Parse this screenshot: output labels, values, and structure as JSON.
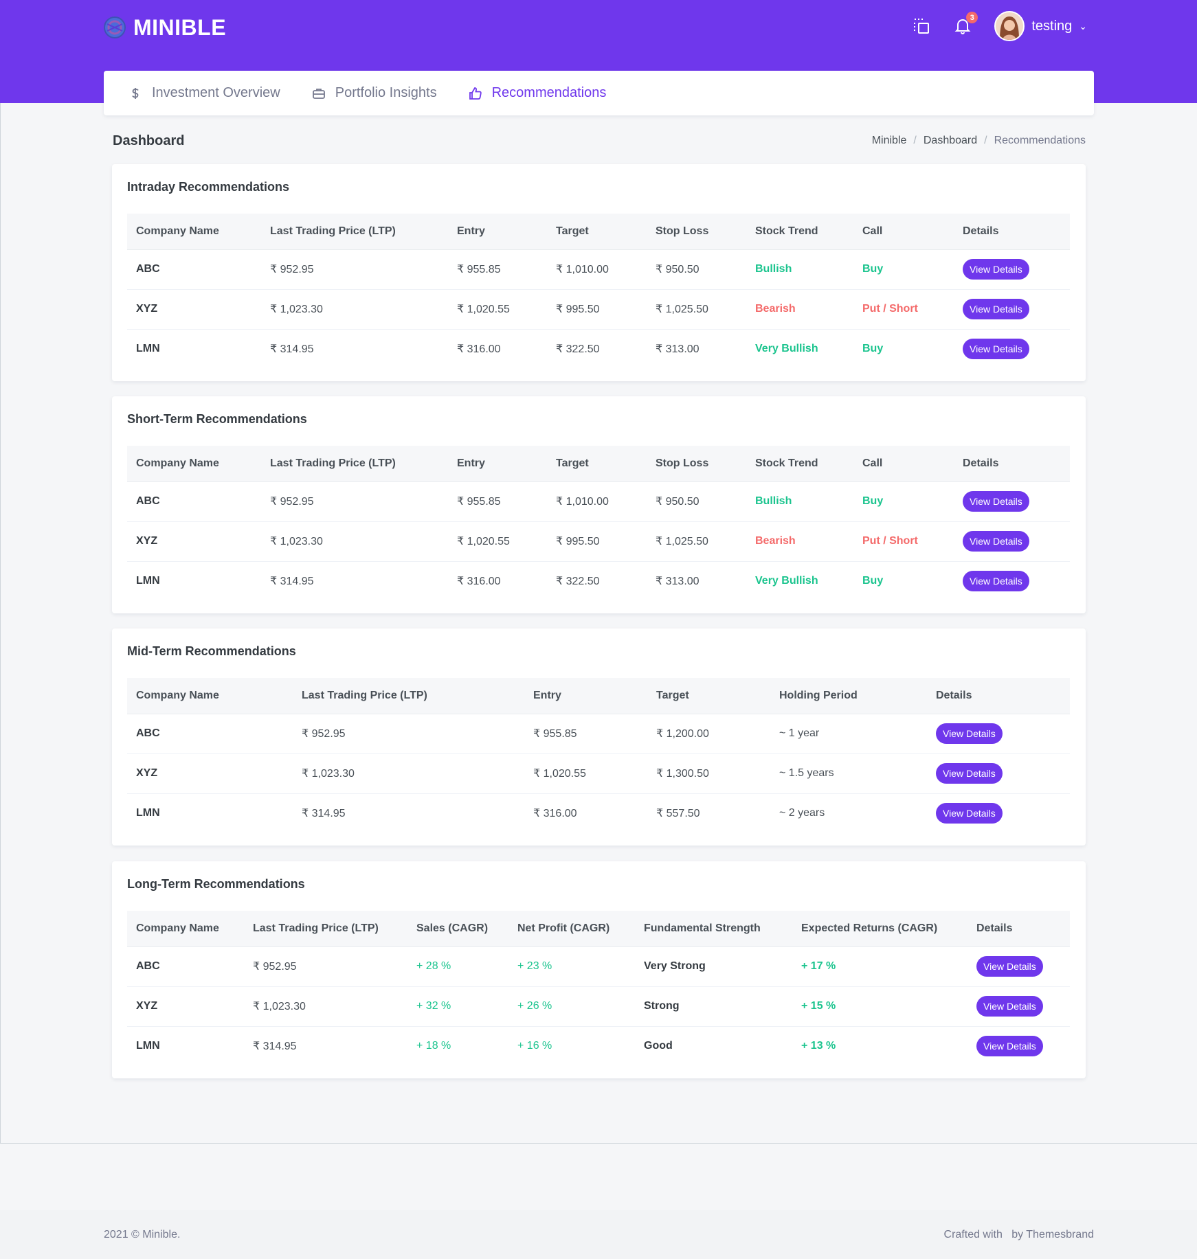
{
  "brand": {
    "name": "MINIBLE"
  },
  "header": {
    "notification_count": "3",
    "user_name": "testing"
  },
  "nav": {
    "items": [
      {
        "label": "Investment Overview",
        "icon": "dollar-icon"
      },
      {
        "label": "Portfolio Insights",
        "icon": "briefcase-icon"
      },
      {
        "label": "Recommendations",
        "icon": "thumbs-up-icon",
        "active": true
      }
    ]
  },
  "page": {
    "title": "Dashboard",
    "breadcrumb": [
      "Minible",
      "Dashboard",
      "Recommendations"
    ]
  },
  "intraday": {
    "title": "Intraday Recommendations",
    "headers": [
      "Company Name",
      "Last Trading Price (LTP)",
      "Entry",
      "Target",
      "Stop Loss",
      "Stock Trend",
      "Call",
      "Details"
    ],
    "rows": [
      {
        "company": "ABC",
        "ltp": "₹ 952.95",
        "entry": "₹ 955.85",
        "target": "₹ 1,010.00",
        "stop_loss": "₹ 950.50",
        "trend": "Bullish",
        "call": "Buy",
        "details": "View Details"
      },
      {
        "company": "XYZ",
        "ltp": "₹ 1,023.30",
        "entry": "₹ 1,020.55",
        "target": "₹ 995.50",
        "stop_loss": "₹ 1,025.50",
        "trend": "Bearish",
        "call": "Put / Short",
        "details": "View Details"
      },
      {
        "company": "LMN",
        "ltp": "₹ 314.95",
        "entry": "₹ 316.00",
        "target": "₹ 322.50",
        "stop_loss": "₹ 313.00",
        "trend": "Very Bullish",
        "call": "Buy",
        "details": "View Details"
      }
    ]
  },
  "shortterm": {
    "title": "Short-Term Recommendations",
    "headers": [
      "Company Name",
      "Last Trading Price (LTP)",
      "Entry",
      "Target",
      "Stop Loss",
      "Stock Trend",
      "Call",
      "Details"
    ],
    "rows": [
      {
        "company": "ABC",
        "ltp": "₹ 952.95",
        "entry": "₹ 955.85",
        "target": "₹ 1,010.00",
        "stop_loss": "₹ 950.50",
        "trend": "Bullish",
        "call": "Buy",
        "details": "View Details"
      },
      {
        "company": "XYZ",
        "ltp": "₹ 1,023.30",
        "entry": "₹ 1,020.55",
        "target": "₹ 995.50",
        "stop_loss": "₹ 1,025.50",
        "trend": "Bearish",
        "call": "Put / Short",
        "details": "View Details"
      },
      {
        "company": "LMN",
        "ltp": "₹ 314.95",
        "entry": "₹ 316.00",
        "target": "₹ 322.50",
        "stop_loss": "₹ 313.00",
        "trend": "Very Bullish",
        "call": "Buy",
        "details": "View Details"
      }
    ]
  },
  "midterm": {
    "title": "Mid-Term Recommendations",
    "headers": [
      "Company Name",
      "Last Trading Price (LTP)",
      "Entry",
      "Target",
      "Holding Period",
      "Details"
    ],
    "rows": [
      {
        "company": "ABC",
        "ltp": "₹ 952.95",
        "entry": "₹ 955.85",
        "target": "₹ 1,200.00",
        "holding": "~ 1 year",
        "details": "View Details"
      },
      {
        "company": "XYZ",
        "ltp": "₹ 1,023.30",
        "entry": "₹ 1,020.55",
        "target": "₹ 1,300.50",
        "holding": "~ 1.5 years",
        "details": "View Details"
      },
      {
        "company": "LMN",
        "ltp": "₹ 314.95",
        "entry": "₹ 316.00",
        "target": "₹ 557.50",
        "holding": "~ 2 years",
        "details": "View Details"
      }
    ]
  },
  "longterm": {
    "title": "Long-Term Recommendations",
    "headers": [
      "Company Name",
      "Last Trading Price (LTP)",
      "Sales (CAGR)",
      "Net Profit (CAGR)",
      "Fundamental Strength",
      "Expected Returns (CAGR)",
      "Details"
    ],
    "rows": [
      {
        "company": "ABC",
        "ltp": "₹ 952.95",
        "sales": "+ 28 %",
        "profit": "+ 23 %",
        "strength": "Very Strong",
        "returns": "+ 17 %",
        "details": "View Details"
      },
      {
        "company": "XYZ",
        "ltp": "₹ 1,023.30",
        "sales": "+ 32 %",
        "profit": "+ 26 %",
        "strength": "Strong",
        "returns": "+ 15 %",
        "details": "View Details"
      },
      {
        "company": "LMN",
        "ltp": "₹ 314.95",
        "sales": "+ 18 %",
        "profit": "+ 16 %",
        "strength": "Good",
        "returns": "+ 13 %",
        "details": "View Details"
      }
    ]
  },
  "footer": {
    "left": "2021 © Minible.",
    "right": "Crafted with   by Themesbrand"
  },
  "colors": {
    "primary": "#6f37ec",
    "success": "#1bc48e",
    "danger": "#f46a6a"
  }
}
